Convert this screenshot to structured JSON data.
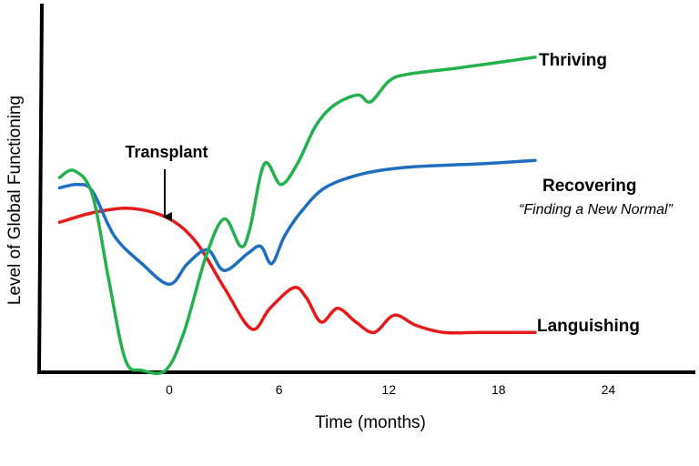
{
  "chart_data": {
    "type": "line",
    "xlabel": "Time (months)",
    "ylabel": "Level of Global Functioning",
    "xlim": [
      -6,
      24
    ],
    "x_ticks": [
      0,
      6,
      12,
      18,
      24
    ],
    "tick_labels": [
      "0",
      "6",
      "12",
      "18",
      "24"
    ],
    "grid": false,
    "legend": "none (series labelled inline at line ends)",
    "series": [
      {
        "name": "Thriving",
        "color": "#22b14c",
        "points": [
          [
            -6,
            55
          ],
          [
            -5.2,
            57
          ],
          [
            -4.2,
            50
          ],
          [
            -3.3,
            25
          ],
          [
            -2.4,
            2
          ],
          [
            -1.5,
            -1
          ],
          [
            -0.2,
            -1
          ],
          [
            0.8,
            10
          ],
          [
            2.0,
            32
          ],
          [
            3.0,
            43
          ],
          [
            3.9,
            35
          ],
          [
            4.4,
            40
          ],
          [
            5.2,
            59
          ],
          [
            6.1,
            53
          ],
          [
            7.0,
            59
          ],
          [
            8.0,
            70
          ],
          [
            9.0,
            76
          ],
          [
            10.3,
            79
          ],
          [
            11.0,
            77
          ],
          [
            12.0,
            83
          ],
          [
            13.0,
            85
          ],
          [
            16.0,
            87
          ],
          [
            20.0,
            90
          ]
        ]
      },
      {
        "name": "Recovering",
        "color": "#1f6fbf",
        "points": [
          [
            -6,
            52
          ],
          [
            -5.0,
            53
          ],
          [
            -4.2,
            51
          ],
          [
            -3.0,
            38
          ],
          [
            -1.5,
            30
          ],
          [
            0.0,
            24
          ],
          [
            1.0,
            30
          ],
          [
            2.1,
            34
          ],
          [
            3.0,
            28
          ],
          [
            4.3,
            33
          ],
          [
            5.0,
            35
          ],
          [
            5.6,
            30
          ],
          [
            6.3,
            38
          ],
          [
            7.2,
            45
          ],
          [
            8.5,
            52
          ],
          [
            10.5,
            56
          ],
          [
            13.0,
            58
          ],
          [
            17.0,
            59
          ],
          [
            20.0,
            60
          ]
        ]
      },
      {
        "name": "Languishing",
        "color": "#e31b1b",
        "points": [
          [
            -6,
            42
          ],
          [
            -4.0,
            45
          ],
          [
            -2.0,
            46
          ],
          [
            0.0,
            43
          ],
          [
            1.5,
            36
          ],
          [
            3.0,
            23
          ],
          [
            4.5,
            11
          ],
          [
            5.5,
            17
          ],
          [
            6.8,
            23
          ],
          [
            7.5,
            20
          ],
          [
            8.3,
            13
          ],
          [
            9.2,
            17
          ],
          [
            10.2,
            13
          ],
          [
            11.2,
            10
          ],
          [
            12.3,
            15
          ],
          [
            13.5,
            12
          ],
          [
            15.0,
            10
          ],
          [
            17.0,
            10
          ],
          [
            20.0,
            10
          ]
        ]
      }
    ],
    "annotations": [
      {
        "text": "Transplant",
        "x": 0,
        "arrow": true
      }
    ],
    "series_labels": {
      "thriving": "Thriving",
      "recovering": "Recovering",
      "recovering_note": "“Finding a New Normal”",
      "languishing": "Languishing"
    }
  }
}
